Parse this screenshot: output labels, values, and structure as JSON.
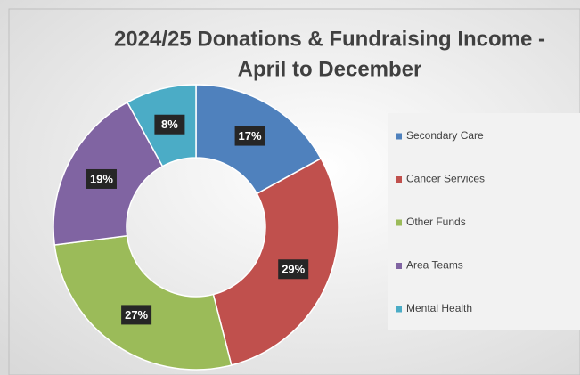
{
  "chart_data": {
    "type": "donut",
    "title": [
      "2024/25 Donations & Fundraising Income  -",
      "April to December"
    ],
    "categories": [
      "Secondary Care",
      "Cancer Services",
      "Other Funds",
      "Area Teams",
      "Mental Health"
    ],
    "values": [
      17,
      29,
      27,
      19,
      8
    ],
    "value_labels": [
      "17%",
      "29%",
      "27%",
      "19%",
      "8%"
    ],
    "colors": [
      "#4f81bd",
      "#c0504d",
      "#9bbb59",
      "#8064a2",
      "#4bacc6"
    ],
    "legend": "right"
  }
}
